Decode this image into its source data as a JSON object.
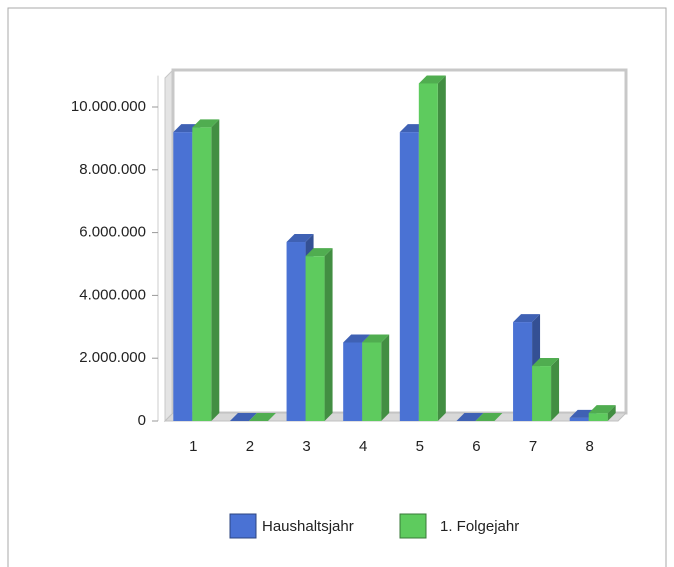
{
  "chart_data": {
    "type": "bar3d",
    "categories": [
      "1",
      "2",
      "3",
      "4",
      "5",
      "6",
      "7",
      "8"
    ],
    "series": [
      {
        "name": "Haushaltsjahr",
        "color": "#4a72d4",
        "values": [
          9200000,
          0,
          5700000,
          2500000,
          9200000,
          0,
          3150000,
          100000
        ]
      },
      {
        "name": "1. Folgejahr",
        "color": "#5ecb5e",
        "values": [
          9350000,
          0,
          5250000,
          2500000,
          10750000,
          0,
          1750000,
          250000
        ]
      }
    ],
    "ylim": [
      0,
      11000000
    ],
    "yticks": [
      0,
      {
        "value": 2000000,
        "label": "2.000.000"
      },
      {
        "value": 4000000,
        "label": "4.000.000"
      },
      {
        "value": 6000000,
        "label": "6.000.000"
      },
      {
        "value": 8000000,
        "label": "8.000.000"
      },
      {
        "value": 10000000,
        "label": "10.000.000"
      }
    ],
    "grid": false,
    "legend": "bottom"
  }
}
